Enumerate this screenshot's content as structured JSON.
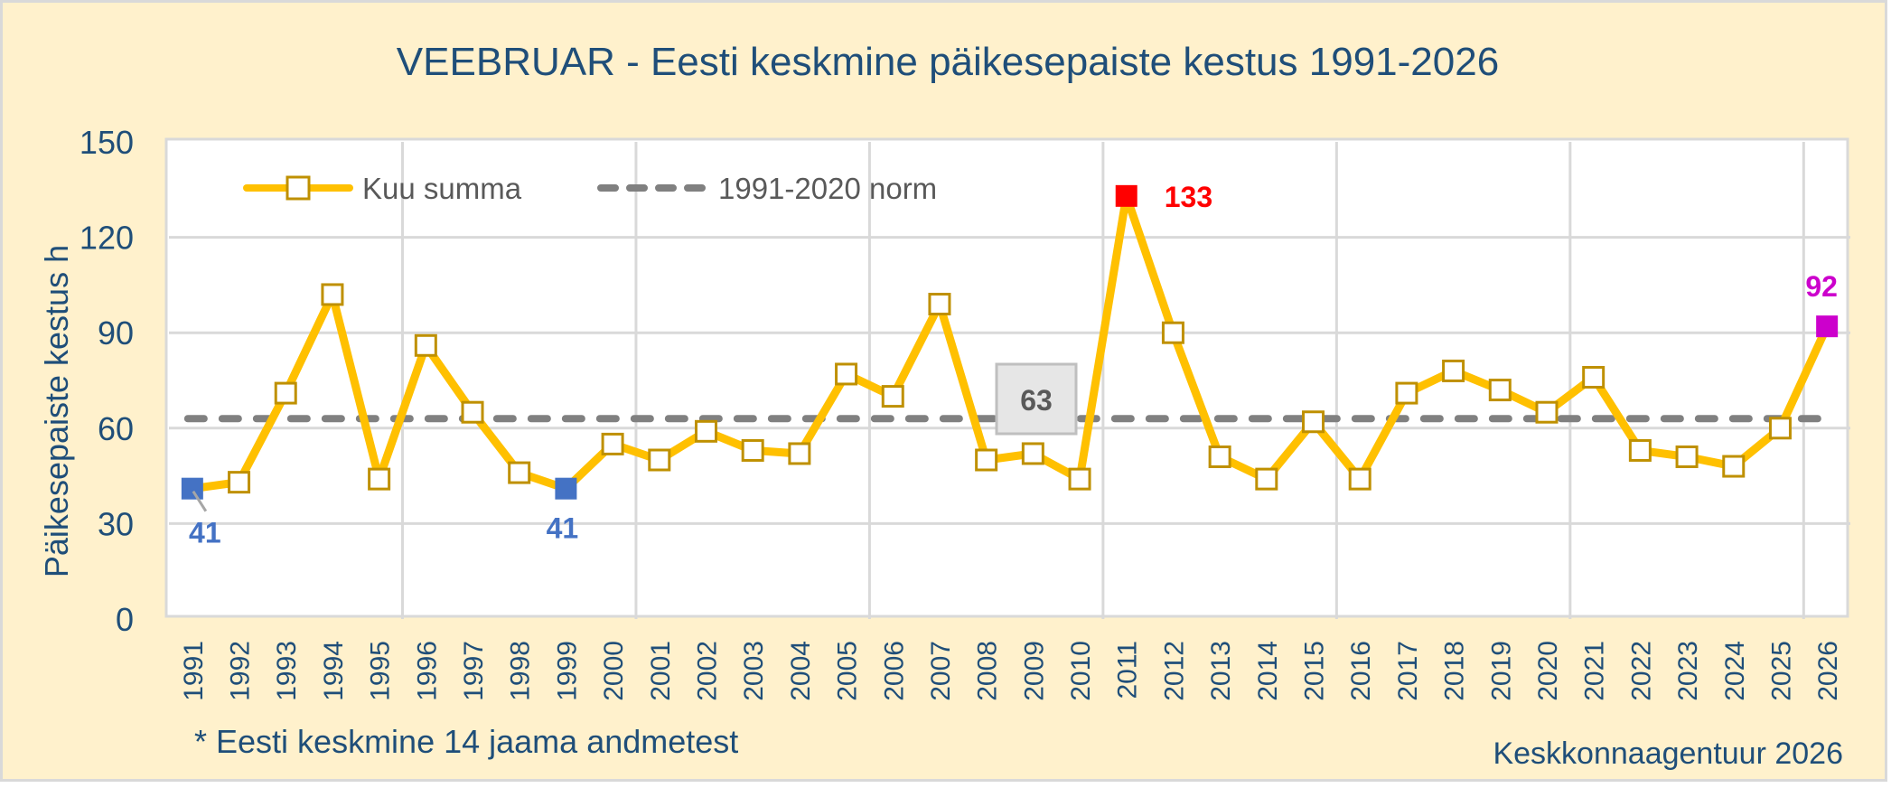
{
  "chart_data": {
    "type": "line",
    "title": "VEEBRUAR - Eesti keskmine päikesepaiste kestus 1991-2026",
    "xlabel": "",
    "ylabel": "Päikesepaiste kestus h",
    "ylim": [
      0,
      150
    ],
    "yticks": [
      0,
      30,
      60,
      90,
      120,
      150
    ],
    "grid": true,
    "legend_position": "top-left inside plot",
    "categories": [
      "1991",
      "1992",
      "1993",
      "1994",
      "1995",
      "1996",
      "1997",
      "1998",
      "1999",
      "2000",
      "2001",
      "2002",
      "2003",
      "2004",
      "2005",
      "2006",
      "2007",
      "2008",
      "2009",
      "2010",
      "2011",
      "2012",
      "2013",
      "2014",
      "2015",
      "2016",
      "2017",
      "2018",
      "2019",
      "2020",
      "2021",
      "2022",
      "2023",
      "2024",
      "2025",
      "2026"
    ],
    "series": [
      {
        "name": "Kuu summa",
        "style": "solid line with hollow square markers",
        "color": "#FFC000",
        "marker_border": "#BF9000",
        "values": [
          41,
          43,
          71,
          102,
          44,
          86,
          65,
          46,
          41,
          55,
          50,
          59,
          53,
          52,
          77,
          70,
          99,
          50,
          52,
          44,
          133,
          90,
          51,
          44,
          62,
          44,
          71,
          78,
          72,
          65,
          76,
          53,
          51,
          48,
          60,
          92
        ]
      },
      {
        "name": "1991-2020 norm",
        "style": "dashed",
        "color": "#808080",
        "values": [
          63,
          63,
          63,
          63,
          63,
          63,
          63,
          63,
          63,
          63,
          63,
          63,
          63,
          63,
          63,
          63,
          63,
          63,
          63,
          63,
          63,
          63,
          63,
          63,
          63,
          63,
          63,
          63,
          63,
          63,
          63,
          63,
          63,
          63,
          63,
          63
        ]
      }
    ],
    "highlights": [
      {
        "year": "1991",
        "value": 41,
        "label": "41",
        "color": "#4472C4",
        "meaning": "minimum"
      },
      {
        "year": "1999",
        "value": 41,
        "label": "41",
        "color": "#4472C4",
        "meaning": "minimum"
      },
      {
        "year": "2011",
        "value": 133,
        "label": "133",
        "color": "#FF0000",
        "meaning": "maximum"
      },
      {
        "year": "2026",
        "value": 92,
        "label": "92",
        "color": "#CC00CC",
        "meaning": "current"
      }
    ],
    "annotations": [
      {
        "text": "63",
        "kind": "norm value box"
      },
      {
        "text": "* Eesti keskmine 14 jaama andmetest",
        "position": "bottom-left"
      },
      {
        "text": "Keskkonnaagentuur 2026",
        "position": "bottom-right"
      }
    ]
  },
  "texts": {
    "title": "VEEBRUAR - Eesti keskmine päikesepaiste kestus 1991-2026",
    "ylabel": "Päikesepaiste kestus h",
    "legend_series": "Kuu summa",
    "legend_norm": "1991-2020 norm",
    "norm_box": "63",
    "footnote": "* Eesti keskmine 14 jaama andmetest",
    "source": "Keskkonnaagentuur 2026"
  },
  "colors": {
    "background": "#FFF1CC",
    "plot_bg": "#FFFFFF",
    "grid": "#D9D9D9",
    "text_blue": "#1F4E79",
    "line": "#FFC000",
    "marker_border": "#BF9000",
    "norm": "#808080",
    "min": "#4472C4",
    "max": "#FF0000",
    "current": "#CC00CC",
    "norm_box_fill": "#E6E6E6",
    "norm_box_border": "#BFBFBF",
    "norm_box_text": "#595959",
    "legend_text": "#595959"
  }
}
